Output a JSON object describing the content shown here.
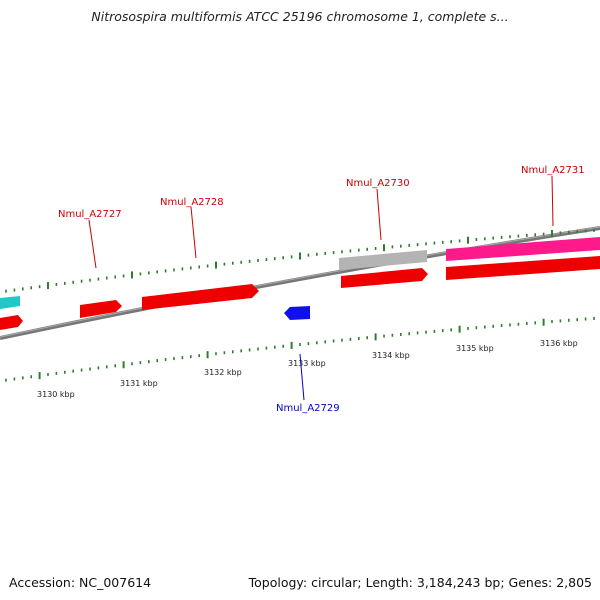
{
  "title": "Nitrosospira multiformis ATCC 25196 chromosome 1, complete s...",
  "footer": {
    "accession": "Accession: NC_007614",
    "summary": "Topology: circular; Length: 3,184,243 bp; Genes: 2,805"
  },
  "colors": {
    "backbone": "#888888",
    "tick": "#2e7d2e",
    "forward_label": "#cc0000",
    "reverse_label": "#0000cc"
  },
  "ticks": [
    {
      "label": "3130 kbp"
    },
    {
      "label": "3131 kbp"
    },
    {
      "label": "3132 kbp"
    },
    {
      "label": "3133 kbp"
    },
    {
      "label": "3134 kbp"
    },
    {
      "label": "3135 kbp"
    },
    {
      "label": "3136 kbp"
    }
  ],
  "genes": [
    {
      "label": "Nmul_A2727",
      "strand": "forward",
      "color": "#ff0000"
    },
    {
      "label": "Nmul_A2728",
      "strand": "forward",
      "color": "#ff0000"
    },
    {
      "label": "Nmul_A2729",
      "strand": "reverse",
      "color": "#0000ff"
    },
    {
      "label": "Nmul_A2730",
      "strand": "forward",
      "color": "#ff0000"
    },
    {
      "label": "Nmul_A2731",
      "strand": "forward",
      "color": "#ff1493"
    }
  ]
}
